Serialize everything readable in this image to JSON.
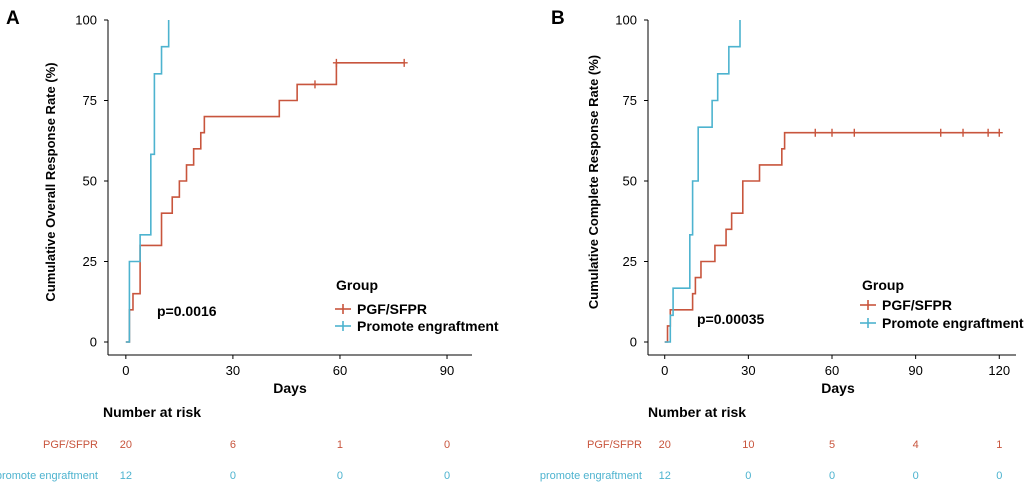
{
  "colors": {
    "pgf": "#C8553D",
    "promote": "#4DB3CF",
    "axis": "#000000"
  },
  "legend": {
    "title": "Group",
    "entries": [
      "PGF/SFPR",
      "Promote engraftment"
    ]
  },
  "chart_data": [
    {
      "id": "A",
      "type": "line",
      "panel_label": "A",
      "title": "",
      "xlabel": "Days",
      "ylabel": "Cumulative Overall Response Rate (%)",
      "xlim": [
        -5,
        97
      ],
      "ylim": [
        0,
        100
      ],
      "xticks": [
        0,
        30,
        60,
        90
      ],
      "yticks": [
        0,
        25,
        50,
        75,
        100
      ],
      "pvalue": "p=0.0016",
      "series": [
        {
          "name": "PGF/SFPR",
          "color": "#C8553D",
          "steps": [
            [
              0,
              0
            ],
            [
              1,
              10
            ],
            [
              2,
              15
            ],
            [
              4,
              30
            ],
            [
              10,
              40
            ],
            [
              13,
              45
            ],
            [
              15,
              50
            ],
            [
              17,
              55
            ],
            [
              19,
              60
            ],
            [
              21,
              65
            ],
            [
              22,
              70
            ],
            [
              43,
              75
            ],
            [
              48,
              80
            ],
            [
              59,
              86.7
            ],
            [
              78,
              86.7
            ]
          ],
          "censor": [
            [
              53,
              80
            ],
            [
              59,
              86.7
            ],
            [
              78,
              86.7
            ]
          ]
        },
        {
          "name": "Promote engraftment",
          "color": "#4DB3CF",
          "steps": [
            [
              0,
              0
            ],
            [
              1,
              25
            ],
            [
              4,
              33.3
            ],
            [
              7,
              58.3
            ],
            [
              8,
              83.3
            ],
            [
              10,
              91.7
            ],
            [
              12,
              100
            ]
          ],
          "censor": []
        }
      ],
      "risk_table": {
        "title": "Number at risk",
        "times": [
          0,
          30,
          60,
          90
        ],
        "rows": [
          {
            "label": "PGF/SFPR",
            "values": [
              "20",
              "6",
              "1",
              "0"
            ]
          },
          {
            "label": "promote engraftment",
            "values": [
              "12",
              "0",
              "0",
              "0"
            ]
          }
        ]
      }
    },
    {
      "id": "B",
      "type": "line",
      "panel_label": "B",
      "title": "",
      "xlabel": "Days",
      "ylabel": "Cumulative Complete Response Rate (%)",
      "xlim": [
        -6,
        126
      ],
      "ylim": [
        0,
        100
      ],
      "xticks": [
        0,
        30,
        60,
        90,
        120
      ],
      "yticks": [
        0,
        25,
        50,
        75,
        100
      ],
      "pvalue": "p=0.00035",
      "series": [
        {
          "name": "PGF/SFPR",
          "color": "#C8553D",
          "steps": [
            [
              0,
              0
            ],
            [
              1,
              5
            ],
            [
              2,
              10
            ],
            [
              10,
              15
            ],
            [
              11,
              20
            ],
            [
              13,
              25
            ],
            [
              18,
              30
            ],
            [
              22,
              35
            ],
            [
              24,
              40
            ],
            [
              28,
              50
            ],
            [
              34,
              55
            ],
            [
              42,
              60
            ],
            [
              43,
              65
            ],
            [
              120,
              65
            ]
          ],
          "censor": [
            [
              54,
              65
            ],
            [
              60,
              65
            ],
            [
              68,
              65
            ],
            [
              99,
              65
            ],
            [
              107,
              65
            ],
            [
              116,
              65
            ],
            [
              120,
              65
            ]
          ]
        },
        {
          "name": "Promote engraftment",
          "color": "#4DB3CF",
          "steps": [
            [
              0,
              0
            ],
            [
              2,
              8.3
            ],
            [
              3,
              16.7
            ],
            [
              9,
              33.3
            ],
            [
              10,
              50
            ],
            [
              12,
              66.7
            ],
            [
              17,
              75
            ],
            [
              19,
              83.3
            ],
            [
              23,
              91.7
            ],
            [
              27,
              100
            ]
          ],
          "censor": []
        }
      ],
      "risk_table": {
        "title": "Number at risk",
        "times": [
          0,
          30,
          60,
          90,
          120
        ],
        "rows": [
          {
            "label": "PGF/SFPR",
            "values": [
              "20",
              "10",
              "5",
              "4",
              "1"
            ]
          },
          {
            "label": "promote engraftment",
            "values": [
              "12",
              "0",
              "0",
              "0",
              "0"
            ]
          }
        ]
      }
    }
  ]
}
